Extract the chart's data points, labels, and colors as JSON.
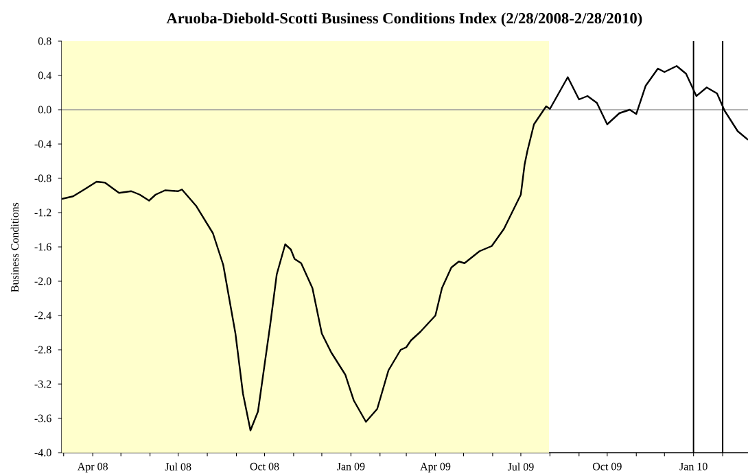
{
  "chart_data": {
    "type": "line",
    "title": "Aruoba-Diebold-Scotti Business Conditions Index (2/28/2008-2/28/2010)",
    "ylabel": "Business Conditions",
    "xlim": [
      "2008-02-28",
      "2010-02-28"
    ],
    "xticks": [
      {
        "value": "2008-03-01",
        "label": null
      },
      {
        "value": "2008-04-01",
        "label": "Apr 08"
      },
      {
        "value": "2008-05-01",
        "label": null
      },
      {
        "value": "2008-06-01",
        "label": null
      },
      {
        "value": "2008-07-01",
        "label": "Jul 08"
      },
      {
        "value": "2008-08-01",
        "label": null
      },
      {
        "value": "2008-09-01",
        "label": null
      },
      {
        "value": "2008-10-01",
        "label": "Oct 08"
      },
      {
        "value": "2008-11-01",
        "label": null
      },
      {
        "value": "2008-12-01",
        "label": null
      },
      {
        "value": "2009-01-01",
        "label": "Jan 09"
      },
      {
        "value": "2009-02-01",
        "label": null
      },
      {
        "value": "2009-03-01",
        "label": null
      },
      {
        "value": "2009-04-01",
        "label": "Apr 09"
      },
      {
        "value": "2009-05-01",
        "label": null
      },
      {
        "value": "2009-06-01",
        "label": null
      },
      {
        "value": "2009-07-01",
        "label": "Jul 09"
      },
      {
        "value": "2009-08-01",
        "label": null
      },
      {
        "value": "2009-09-01",
        "label": null
      },
      {
        "value": "2009-10-01",
        "label": "Oct 09"
      },
      {
        "value": "2009-11-01",
        "label": null
      },
      {
        "value": "2009-12-01",
        "label": null
      },
      {
        "value": "2010-01-01",
        "label": "Jan 10"
      },
      {
        "value": "2010-02-01",
        "label": null
      }
    ],
    "ylim": [
      -4.0,
      0.8
    ],
    "yticks": [
      0.8,
      0.4,
      {
        "value": 0,
        "label": "0.0"
      },
      -0.4,
      -0.8,
      -1.2,
      -1.6,
      {
        "value": -2,
        "label": "-2.0"
      },
      -2.4,
      -2.8,
      -3.2,
      -3.6,
      {
        "value": -4,
        "label": "-4.0"
      }
    ],
    "x": [
      "2008-02-28",
      "2008-03-11",
      "2008-03-23",
      "2008-04-05",
      "2008-04-14",
      "2008-04-29",
      "2008-05-12",
      "2008-05-21",
      "2008-05-31",
      "2008-06-07",
      "2008-06-17",
      "2008-07-01",
      "2008-07-05",
      "2008-07-20",
      "2008-08-07",
      "2008-08-18",
      "2008-08-31",
      "2008-09-08",
      "2008-09-16",
      "2008-09-24",
      "2008-10-07",
      "2008-10-14",
      "2008-10-23",
      "2008-10-29",
      "2008-11-02",
      "2008-11-09",
      "2008-11-21",
      "2008-12-01",
      "2008-12-11",
      "2008-12-26",
      "2009-01-04",
      "2009-01-17",
      "2009-01-29",
      "2009-02-10",
      "2009-02-23",
      "2009-03-01",
      "2009-03-06",
      "2009-03-16",
      "2009-04-01",
      "2009-04-08",
      "2009-04-18",
      "2009-04-26",
      "2009-05-02",
      "2009-05-18",
      "2009-05-31",
      "2009-06-13",
      "2009-07-01",
      "2009-07-05",
      "2009-07-08",
      "2009-07-15",
      "2009-07-28",
      "2009-08-01",
      "2009-08-20",
      "2009-09-01",
      "2009-09-10",
      "2009-09-20",
      "2009-10-01",
      "2009-10-14",
      "2009-10-25",
      "2009-11-01",
      "2009-11-11",
      "2009-11-24",
      "2009-12-01",
      "2009-12-14",
      "2009-12-24",
      "2010-01-04",
      "2010-01-15",
      "2010-01-26",
      "2010-02-03",
      "2010-02-17",
      "2010-02-28"
    ],
    "series": [
      {
        "color": "#000000",
        "values": [
          -1.04,
          -1.01,
          -0.93,
          -0.84,
          -0.85,
          -0.97,
          -0.95,
          -0.99,
          -1.06,
          -0.99,
          -0.94,
          -0.95,
          -0.93,
          -1.12,
          -1.44,
          -1.81,
          -2.61,
          -3.31,
          -3.74,
          -3.52,
          -2.51,
          -1.92,
          -1.57,
          -1.63,
          -1.74,
          -1.79,
          -2.08,
          -2.61,
          -2.83,
          -3.09,
          -3.39,
          -3.64,
          -3.49,
          -3.04,
          -2.8,
          -2.77,
          -2.69,
          -2.59,
          -2.4,
          -2.08,
          -1.84,
          -1.77,
          -1.79,
          -1.65,
          -1.59,
          -1.39,
          -0.99,
          -0.64,
          -0.48,
          -0.17,
          0.04,
          0.01,
          0.38,
          0.12,
          0.16,
          0.08,
          -0.17,
          -0.04,
          0.0,
          -0.05,
          0.28,
          0.48,
          0.44,
          0.51,
          0.42,
          0.16,
          0.26,
          0.19,
          -0.01,
          -0.25,
          -0.35
        ]
      }
    ],
    "line_style": "solid",
    "marker": "none",
    "bands": [
      {
        "axis": "x",
        "from": "2008-02-28",
        "to": "2009-07-31",
        "color": "#ffffcc"
      }
    ],
    "ref_lines": [
      {
        "axis": "y",
        "value": 0,
        "color": "#999999"
      },
      {
        "axis": "x",
        "value": "2010-01-01",
        "color": "#000000"
      },
      {
        "axis": "x",
        "value": "2010-02-01",
        "color": "#000000"
      }
    ]
  }
}
